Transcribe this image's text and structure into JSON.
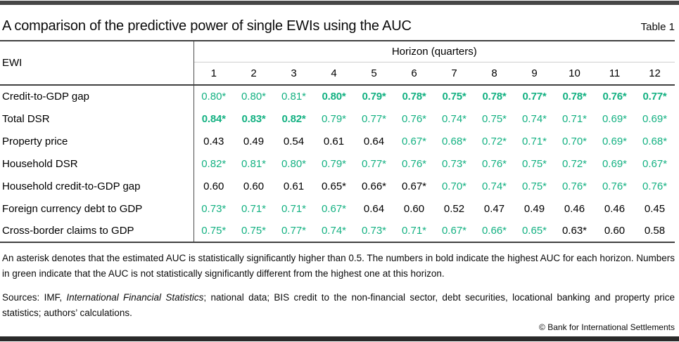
{
  "colors": {
    "green": "#14b182",
    "rule_dark": "#404040",
    "rule_light": "#cfcfcf",
    "top_bar": "#474747",
    "bottom_bar": "#2a2a2a"
  },
  "header": {
    "title": "A comparison of the predictive power of single EWIs using the AUC",
    "table_label": "Table 1"
  },
  "table": {
    "row_header": "EWI",
    "col_group_header": "Horizon (quarters)",
    "columns": [
      "1",
      "2",
      "3",
      "4",
      "5",
      "6",
      "7",
      "8",
      "9",
      "10",
      "11",
      "12"
    ],
    "rows": [
      {
        "label": "Credit-to-GDP gap",
        "cells": [
          {
            "v": "0.80*",
            "green": true,
            "bold": false
          },
          {
            "v": "0.80*",
            "green": true,
            "bold": false
          },
          {
            "v": "0.81*",
            "green": true,
            "bold": false
          },
          {
            "v": "0.80*",
            "green": true,
            "bold": true
          },
          {
            "v": "0.79*",
            "green": true,
            "bold": true
          },
          {
            "v": "0.78*",
            "green": true,
            "bold": true
          },
          {
            "v": "0.75*",
            "green": true,
            "bold": true
          },
          {
            "v": "0.78*",
            "green": true,
            "bold": true
          },
          {
            "v": "0.77*",
            "green": true,
            "bold": true
          },
          {
            "v": "0.78*",
            "green": true,
            "bold": true
          },
          {
            "v": "0.76*",
            "green": true,
            "bold": true
          },
          {
            "v": "0.77*",
            "green": true,
            "bold": true
          }
        ]
      },
      {
        "label": "Total DSR",
        "cells": [
          {
            "v": "0.84*",
            "green": true,
            "bold": true
          },
          {
            "v": "0.83*",
            "green": true,
            "bold": true
          },
          {
            "v": "0.82*",
            "green": true,
            "bold": true
          },
          {
            "v": "0.79*",
            "green": true,
            "bold": false
          },
          {
            "v": "0.77*",
            "green": true,
            "bold": false
          },
          {
            "v": "0.76*",
            "green": true,
            "bold": false
          },
          {
            "v": "0.74*",
            "green": true,
            "bold": false
          },
          {
            "v": "0.75*",
            "green": true,
            "bold": false
          },
          {
            "v": "0.74*",
            "green": true,
            "bold": false
          },
          {
            "v": "0.71*",
            "green": true,
            "bold": false
          },
          {
            "v": "0.69*",
            "green": true,
            "bold": false
          },
          {
            "v": "0.69*",
            "green": true,
            "bold": false
          }
        ]
      },
      {
        "label": "Property price",
        "cells": [
          {
            "v": "0.43",
            "green": false,
            "bold": false
          },
          {
            "v": "0.49",
            "green": false,
            "bold": false
          },
          {
            "v": "0.54",
            "green": false,
            "bold": false
          },
          {
            "v": "0.61",
            "green": false,
            "bold": false
          },
          {
            "v": "0.64",
            "green": false,
            "bold": false
          },
          {
            "v": "0.67*",
            "green": true,
            "bold": false
          },
          {
            "v": "0.68*",
            "green": true,
            "bold": false
          },
          {
            "v": "0.72*",
            "green": true,
            "bold": false
          },
          {
            "v": "0.71*",
            "green": true,
            "bold": false
          },
          {
            "v": "0.70*",
            "green": true,
            "bold": false
          },
          {
            "v": "0.69*",
            "green": true,
            "bold": false
          },
          {
            "v": "0.68*",
            "green": true,
            "bold": false
          }
        ]
      },
      {
        "label": "Household DSR",
        "cells": [
          {
            "v": "0.82*",
            "green": true,
            "bold": false
          },
          {
            "v": "0.81*",
            "green": true,
            "bold": false
          },
          {
            "v": "0.80*",
            "green": true,
            "bold": false
          },
          {
            "v": "0.79*",
            "green": true,
            "bold": false
          },
          {
            "v": "0.77*",
            "green": true,
            "bold": false
          },
          {
            "v": "0.76*",
            "green": true,
            "bold": false
          },
          {
            "v": "0.73*",
            "green": true,
            "bold": false
          },
          {
            "v": "0.76*",
            "green": true,
            "bold": false
          },
          {
            "v": "0.75*",
            "green": true,
            "bold": false
          },
          {
            "v": "0.72*",
            "green": true,
            "bold": false
          },
          {
            "v": "0.69*",
            "green": true,
            "bold": false
          },
          {
            "v": "0.67*",
            "green": true,
            "bold": false
          }
        ]
      },
      {
        "label": "Household credit-to-GDP gap",
        "cells": [
          {
            "v": "0.60",
            "green": false,
            "bold": false
          },
          {
            "v": "0.60",
            "green": false,
            "bold": false
          },
          {
            "v": "0.61",
            "green": false,
            "bold": false
          },
          {
            "v": "0.65*",
            "green": false,
            "bold": false
          },
          {
            "v": "0.66*",
            "green": false,
            "bold": false
          },
          {
            "v": "0.67*",
            "green": false,
            "bold": false
          },
          {
            "v": "0.70*",
            "green": true,
            "bold": false
          },
          {
            "v": "0.74*",
            "green": true,
            "bold": false
          },
          {
            "v": "0.75*",
            "green": true,
            "bold": false
          },
          {
            "v": "0.76*",
            "green": true,
            "bold": false
          },
          {
            "v": "0.76*",
            "green": true,
            "bold": false
          },
          {
            "v": "0.76*",
            "green": true,
            "bold": false
          }
        ]
      },
      {
        "label": "Foreign currency debt to GDP",
        "cells": [
          {
            "v": "0.73*",
            "green": true,
            "bold": false
          },
          {
            "v": "0.71*",
            "green": true,
            "bold": false
          },
          {
            "v": "0.71*",
            "green": true,
            "bold": false
          },
          {
            "v": "0.67*",
            "green": true,
            "bold": false
          },
          {
            "v": "0.64",
            "green": false,
            "bold": false
          },
          {
            "v": "0.60",
            "green": false,
            "bold": false
          },
          {
            "v": "0.52",
            "green": false,
            "bold": false
          },
          {
            "v": "0.47",
            "green": false,
            "bold": false
          },
          {
            "v": "0.49",
            "green": false,
            "bold": false
          },
          {
            "v": "0.46",
            "green": false,
            "bold": false
          },
          {
            "v": "0.46",
            "green": false,
            "bold": false
          },
          {
            "v": "0.45",
            "green": false,
            "bold": false
          }
        ]
      },
      {
        "label": "Cross-border claims to GDP",
        "cells": [
          {
            "v": "0.75*",
            "green": true,
            "bold": false
          },
          {
            "v": "0.75*",
            "green": true,
            "bold": false
          },
          {
            "v": "0.77*",
            "green": true,
            "bold": false
          },
          {
            "v": "0.74*",
            "green": true,
            "bold": false
          },
          {
            "v": "0.73*",
            "green": true,
            "bold": false
          },
          {
            "v": "0.71*",
            "green": true,
            "bold": false
          },
          {
            "v": "0.67*",
            "green": true,
            "bold": false
          },
          {
            "v": "0.66*",
            "green": true,
            "bold": false
          },
          {
            "v": "0.65*",
            "green": true,
            "bold": false
          },
          {
            "v": "0.63*",
            "green": false,
            "bold": false
          },
          {
            "v": "0.60",
            "green": false,
            "bold": false
          },
          {
            "v": "0.58",
            "green": false,
            "bold": false
          }
        ]
      }
    ]
  },
  "notes": {
    "text": "An asterisk denotes that the estimated AUC is statistically significantly higher than 0.5. The numbers in bold indicate the highest AUC for each horizon. Numbers in green indicate that the AUC is not statistically significantly different from the highest one at this horizon."
  },
  "sources": {
    "prefix": "Sources: IMF, ",
    "italic": "International Financial Statistics",
    "suffix": "; national data; BIS credit to the non-financial sector, debt securities, locational banking and property price statistics; authors’ calculations."
  },
  "footer": {
    "copyright": "© Bank for International Settlements"
  }
}
